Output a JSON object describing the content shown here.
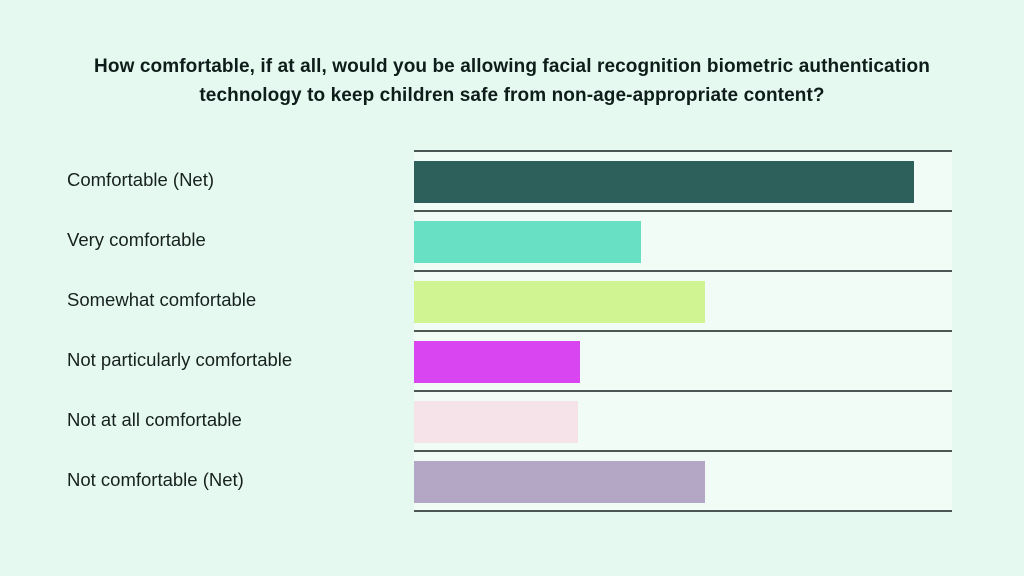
{
  "page": {
    "background_color": "#e6f9f0",
    "plot_background_color": "#f1fcf7",
    "gridline_color": "#4b5856",
    "text_color": "#17211f",
    "title_color": "#0e1c1a"
  },
  "title": {
    "text": "How comfortable, if at all, would you be allowing facial recognition biometric authentication technology to keep children safe from non-age-appropriate content?"
  },
  "chart_data": {
    "type": "bar",
    "orientation": "horizontal",
    "title": "How comfortable, if at all, would you be allowing facial recognition biometric authentication technology to keep children safe from non-age-appropriate content?",
    "categories": [
      "Comfortable (Net)",
      "Very comfortable",
      "Somewhat comfortable",
      "Not particularly comfortable",
      "Not at all comfortable",
      "Not comfortable (Net)"
    ],
    "values": [
      92.9,
      42.2,
      54.1,
      30.9,
      30.5,
      54.1
    ],
    "values_note": "estimated from bar pixel lengths; no numeric data labels or axis ticks are shown in the image",
    "bar_colors": [
      "#2d5f5b",
      "#67e0c3",
      "#d1f493",
      "#da45f2",
      "#f6e3e9",
      "#b4a7c5"
    ],
    "xlabel": "",
    "ylabel": "",
    "xlim": [
      0,
      100
    ],
    "axis_ticks_shown": false,
    "value_labels_shown": false,
    "legend": "none",
    "grid": "horizontal separator line above each bar row and below the last row, spanning the plot area only"
  }
}
